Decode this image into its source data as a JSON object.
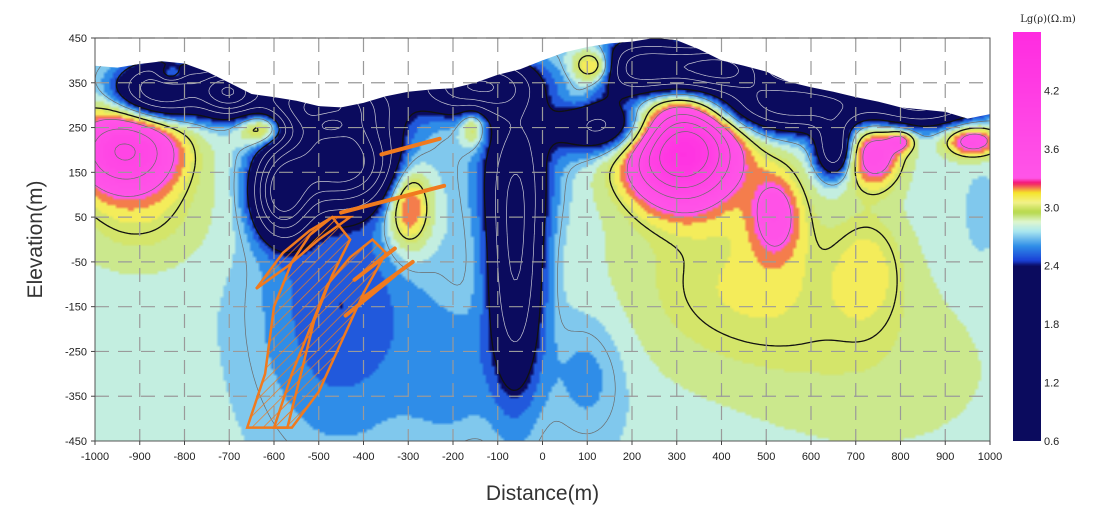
{
  "chart_data": {
    "type": "heatmap",
    "title": "",
    "xlabel": "Distance(m)",
    "ylabel": "Elevation(m)",
    "xlim": [
      -1000,
      1000
    ],
    "ylim": [
      -450,
      450
    ],
    "x_ticks": [
      "-1000",
      "-900",
      "-800",
      "-700",
      "-600",
      "-500",
      "-400",
      "-300",
      "-200",
      "-100",
      "0",
      "100",
      "200",
      "300",
      "400",
      "500",
      "600",
      "700",
      "800",
      "900",
      "1000"
    ],
    "y_ticks": [
      "450",
      "350",
      "250",
      "150",
      "50",
      "-50",
      "-150",
      "-250",
      "-350",
      "-450"
    ],
    "grid": true,
    "colorbar": {
      "title": "Lg(ρ)(Ω.m)",
      "range": [
        0.6,
        4.8
      ],
      "tick_labels": [
        "4.2",
        "3.6",
        "3.0",
        "2.4",
        "1.8",
        "1.2",
        "0.6"
      ],
      "stops": [
        {
          "value": 0.6,
          "color": "#0b0b5e"
        },
        {
          "value": 2.4,
          "color": "#0b0b5e"
        },
        {
          "value": 2.45,
          "color": "#1a3fd6"
        },
        {
          "value": 2.6,
          "color": "#2f8de8"
        },
        {
          "value": 2.75,
          "color": "#a8e6f0"
        },
        {
          "value": 2.85,
          "color": "#dff7d0"
        },
        {
          "value": 2.95,
          "color": "#b6d84a"
        },
        {
          "value": 3.05,
          "color": "#f2f28a"
        },
        {
          "value": 3.15,
          "color": "#f6e62a"
        },
        {
          "value": 3.25,
          "color": "#f3146e"
        },
        {
          "value": 3.3,
          "color": "#ff55e8"
        },
        {
          "value": 4.8,
          "color": "#ff2ce0"
        }
      ]
    },
    "anomalies": [
      {
        "x": -930,
        "y": 200,
        "level": 3.9,
        "rx": 120,
        "ry": 95
      },
      {
        "x": -830,
        "y": 365,
        "level": 3.4,
        "rx": 30,
        "ry": 20
      },
      {
        "x": -620,
        "y": 250,
        "level": 3.6,
        "rx": 60,
        "ry": 40
      },
      {
        "x": -470,
        "y": 255,
        "level": 3.3,
        "rx": 40,
        "ry": 25
      },
      {
        "x": -300,
        "y": 80,
        "level": 3.45,
        "rx": 50,
        "ry": 100
      },
      {
        "x": -155,
        "y": 255,
        "level": 3.2,
        "rx": 30,
        "ry": 45
      },
      {
        "x": 115,
        "y": 385,
        "level": 3.6,
        "rx": 50,
        "ry": 40
      },
      {
        "x": 310,
        "y": 200,
        "level": 4.6,
        "rx": 120,
        "ry": 115
      },
      {
        "x": 520,
        "y": 60,
        "level": 3.3,
        "rx": 60,
        "ry": 100
      },
      {
        "x": 740,
        "y": 190,
        "level": 3.5,
        "rx": 60,
        "ry": 70
      },
      {
        "x": 800,
        "y": 220,
        "level": 3.3,
        "rx": 30,
        "ry": 25
      },
      {
        "x": 960,
        "y": 220,
        "level": 3.5,
        "rx": 60,
        "ry": 35
      },
      {
        "x": -900,
        "y": 50,
        "level": 3.0,
        "rx": 160,
        "ry": 120
      },
      {
        "x": 450,
        "y": -100,
        "level": 3.05,
        "rx": 280,
        "ry": 200
      },
      {
        "x": 730,
        "y": -60,
        "level": 3.0,
        "rx": 80,
        "ry": 130
      },
      {
        "x": 750,
        "y": -300,
        "level": 2.9,
        "rx": 300,
        "ry": 200
      },
      {
        "x": -450,
        "y": -150,
        "level": 2.45,
        "rx": 180,
        "ry": 300
      },
      {
        "x": -580,
        "y": 100,
        "level": 1.2,
        "rx": 60,
        "ry": 90
      },
      {
        "x": -450,
        "y": 170,
        "level": 1.0,
        "rx": 120,
        "ry": 90
      },
      {
        "x": -500,
        "y": 300,
        "level": 1.3,
        "rx": 150,
        "ry": 70
      },
      {
        "x": -60,
        "y": -50,
        "level": 1.8,
        "rx": 60,
        "ry": 280
      },
      {
        "x": -60,
        "y": 160,
        "level": 2.4,
        "rx": 90,
        "ry": 150
      },
      {
        "x": -200,
        "y": -300,
        "level": 2.6,
        "rx": 100,
        "ry": 150
      },
      {
        "x": 100,
        "y": -300,
        "level": 2.6,
        "rx": 90,
        "ry": 150
      },
      {
        "x": -850,
        "y": 330,
        "level": 1.4,
        "rx": 100,
        "ry": 60
      },
      {
        "x": -700,
        "y": 330,
        "level": 1.5,
        "rx": 60,
        "ry": 50
      },
      {
        "x": -150,
        "y": 340,
        "level": 1.5,
        "rx": 120,
        "ry": 60
      },
      {
        "x": 150,
        "y": 250,
        "level": 1.9,
        "rx": 120,
        "ry": 60
      },
      {
        "x": 230,
        "y": 380,
        "level": 1.5,
        "rx": 120,
        "ry": 60
      },
      {
        "x": 400,
        "y": 380,
        "level": 1.5,
        "rx": 100,
        "ry": 50
      },
      {
        "x": 550,
        "y": 300,
        "level": 1.6,
        "rx": 180,
        "ry": 60
      },
      {
        "x": 650,
        "y": 200,
        "level": 1.8,
        "rx": 40,
        "ry": 60
      },
      {
        "x": 850,
        "y": 300,
        "level": 1.8,
        "rx": 140,
        "ry": 50
      },
      {
        "x": 980,
        "y": 50,
        "level": 2.7,
        "rx": 40,
        "ry": 100
      },
      {
        "x": 80,
        "y": 320,
        "level": 2.9,
        "rx": 40,
        "ry": 30
      }
    ],
    "background_level": 2.78,
    "surface": [
      [
        -1000,
        388
      ],
      [
        -950,
        384
      ],
      [
        -900,
        392
      ],
      [
        -850,
        398
      ],
      [
        -800,
        393
      ],
      [
        -750,
        375
      ],
      [
        -700,
        350
      ],
      [
        -650,
        325
      ],
      [
        -600,
        318
      ],
      [
        -550,
        310
      ],
      [
        -500,
        298
      ],
      [
        -450,
        295
      ],
      [
        -400,
        305
      ],
      [
        -350,
        320
      ],
      [
        -300,
        330
      ],
      [
        -250,
        335
      ],
      [
        -200,
        338
      ],
      [
        -150,
        350
      ],
      [
        -100,
        368
      ],
      [
        -50,
        380
      ],
      [
        0,
        400
      ],
      [
        50,
        418
      ],
      [
        100,
        430
      ],
      [
        150,
        438
      ],
      [
        200,
        442
      ],
      [
        250,
        450
      ],
      [
        300,
        445
      ],
      [
        350,
        425
      ],
      [
        400,
        400
      ],
      [
        450,
        388
      ],
      [
        500,
        375
      ],
      [
        550,
        352
      ],
      [
        600,
        340
      ],
      [
        650,
        330
      ],
      [
        700,
        318
      ],
      [
        750,
        308
      ],
      [
        800,
        295
      ],
      [
        850,
        290
      ],
      [
        900,
        285
      ],
      [
        950,
        270
      ],
      [
        1000,
        280
      ]
    ],
    "overlays": [
      {
        "name": "orebody-left",
        "type": "hatched-lens",
        "color": "#f07a1e",
        "points": [
          [
            -660,
            -420
          ],
          [
            -620,
            -300
          ],
          [
            -600,
            -150
          ],
          [
            -560,
            -50
          ],
          [
            -520,
            10
          ],
          [
            -470,
            50
          ],
          [
            -430,
            0
          ],
          [
            -470,
            -80
          ],
          [
            -510,
            -180
          ],
          [
            -540,
            -300
          ],
          [
            -570,
            -420
          ]
        ]
      },
      {
        "name": "orebody-mid",
        "type": "hatched-lens",
        "color": "#f07a1e",
        "points": [
          [
            -600,
            -420
          ],
          [
            -560,
            -300
          ],
          [
            -520,
            -200
          ],
          [
            -480,
            -100
          ],
          [
            -430,
            -40
          ],
          [
            -380,
            0
          ],
          [
            -350,
            -30
          ],
          [
            -400,
            -120
          ],
          [
            -450,
            -230
          ],
          [
            -500,
            -340
          ],
          [
            -560,
            -420
          ]
        ]
      },
      {
        "name": "orebody-upper",
        "type": "hatched-lens",
        "color": "#f07a1e",
        "points": [
          [
            -640,
            -110
          ],
          [
            -580,
            -30
          ],
          [
            -520,
            20
          ],
          [
            -470,
            50
          ],
          [
            -430,
            50
          ],
          [
            -500,
            0
          ],
          [
            -570,
            -60
          ]
        ]
      },
      {
        "name": "vein-1",
        "type": "line",
        "color": "#f07a1e",
        "points": [
          [
            -360,
            190
          ],
          [
            -230,
            225
          ]
        ]
      },
      {
        "name": "vein-2",
        "type": "line",
        "color": "#f07a1e",
        "points": [
          [
            -450,
            60
          ],
          [
            -220,
            120
          ]
        ]
      },
      {
        "name": "vein-3",
        "type": "line",
        "color": "#f07a1e",
        "points": [
          [
            -420,
            -90
          ],
          [
            -330,
            -20
          ]
        ]
      },
      {
        "name": "vein-4",
        "type": "line",
        "color": "#f07a1e",
        "points": [
          [
            -440,
            -170
          ],
          [
            -330,
            -80
          ]
        ]
      },
      {
        "name": "vein-5",
        "type": "line",
        "color": "#f07a1e",
        "points": [
          [
            -400,
            -130
          ],
          [
            -290,
            -50
          ]
        ]
      }
    ]
  }
}
